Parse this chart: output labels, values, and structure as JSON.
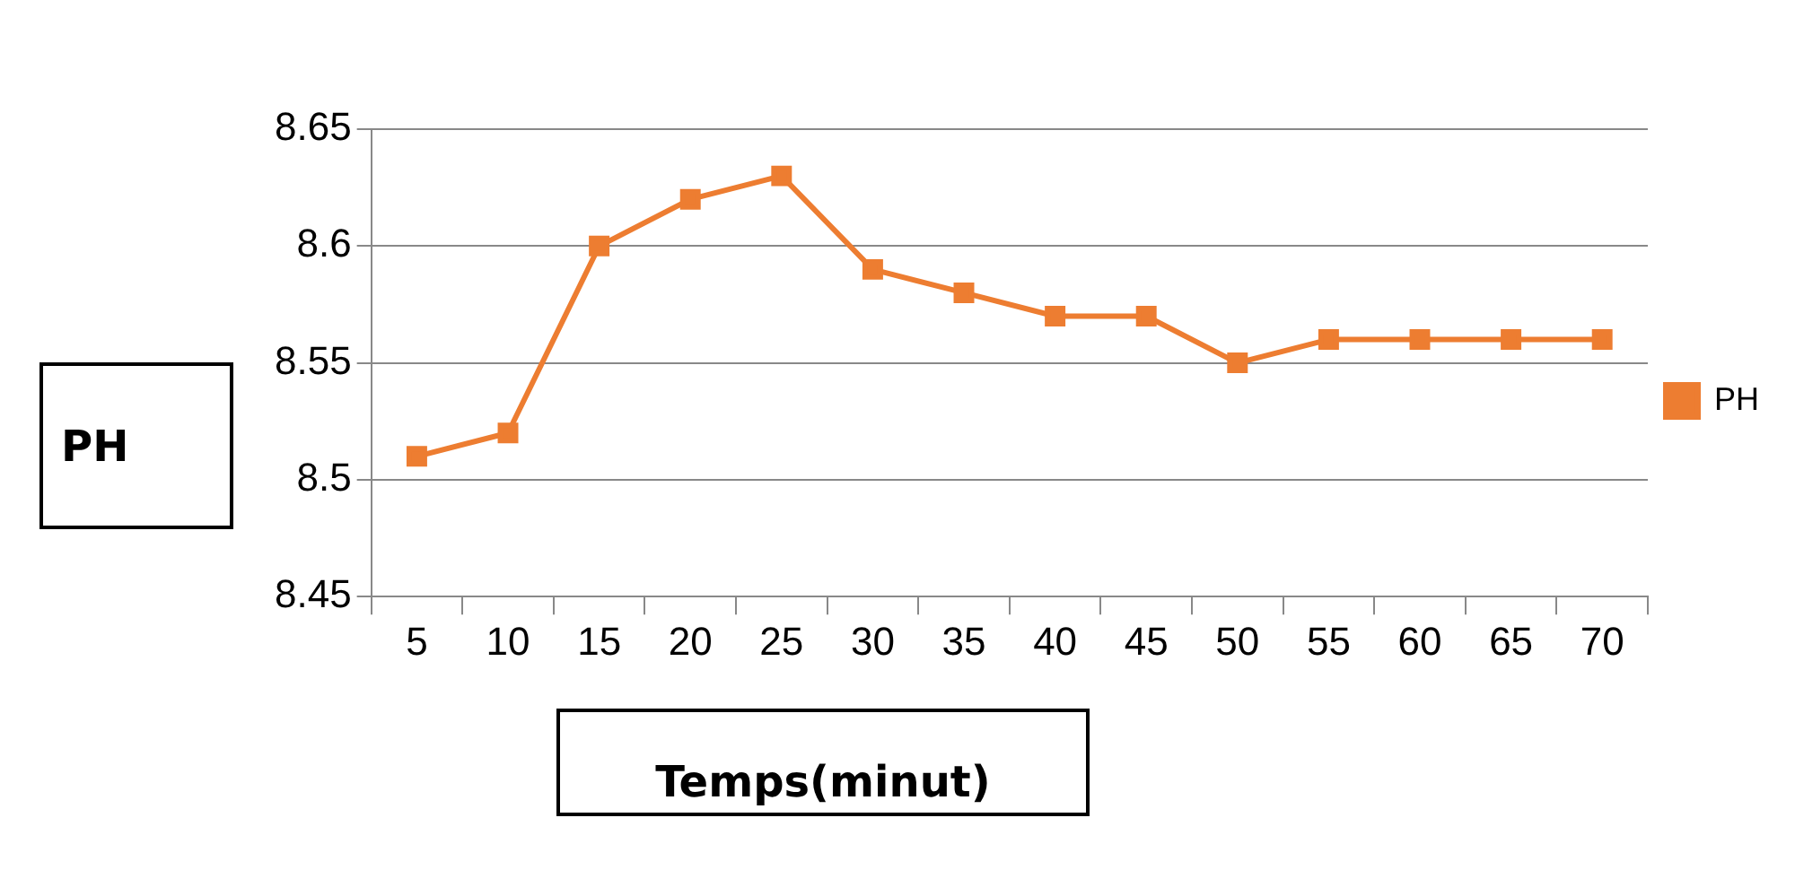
{
  "chart_data": {
    "type": "line",
    "xlabel": "Temps(minut)",
    "ylabel": "PH",
    "categories": [
      "5",
      "10",
      "15",
      "20",
      "25",
      "30",
      "35",
      "40",
      "45",
      "50",
      "55",
      "60",
      "65",
      "70"
    ],
    "series": [
      {
        "name": "PH",
        "color": "#ed7d31",
        "values": [
          8.51,
          8.52,
          8.6,
          8.62,
          8.63,
          8.59,
          8.58,
          8.57,
          8.57,
          8.55,
          8.56,
          8.56,
          8.56,
          8.56
        ]
      }
    ],
    "ylim": [
      8.45,
      8.65
    ],
    "yticks": [
      8.45,
      8.5,
      8.55,
      8.6,
      8.65
    ],
    "grid": "y",
    "legend": "right",
    "marker": "square",
    "line_style": "solid"
  }
}
